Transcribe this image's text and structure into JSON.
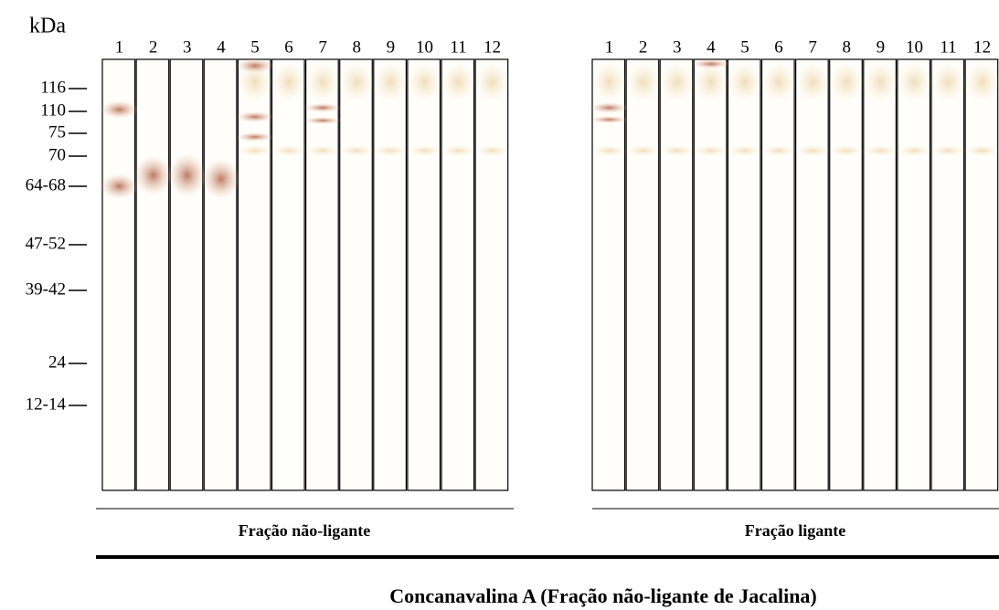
{
  "axis_label": "kDa",
  "markers": [
    "116",
    "110",
    "75",
    "70",
    "64-68",
    "47-52",
    "39-42",
    "24",
    "12-14"
  ],
  "panels": [
    {
      "lanes": [
        "1",
        "2",
        "3",
        "4",
        "5",
        "6",
        "7",
        "8",
        "9",
        "10",
        "11",
        "12"
      ],
      "label": "Fração não-ligante"
    },
    {
      "lanes": [
        "1",
        "2",
        "3",
        "4",
        "5",
        "6",
        "7",
        "8",
        "9",
        "10",
        "11",
        "12"
      ],
      "label": "Fração ligante"
    }
  ],
  "caption": "Concanavalina A (Fração não-ligante de Jacalina)"
}
